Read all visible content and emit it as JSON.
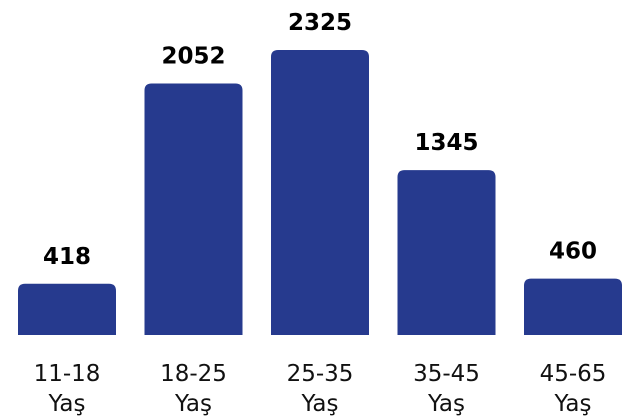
{
  "chart_data": {
    "type": "bar",
    "categories": [
      [
        "11-18",
        "Yaş"
      ],
      [
        "18-25",
        "Yaş"
      ],
      [
        "25-35",
        "Yaş"
      ],
      [
        "35-45",
        "Yaş"
      ],
      [
        "45-65",
        "Yaş"
      ]
    ],
    "values": [
      418,
      2052,
      2325,
      1345,
      460
    ],
    "data_labels": [
      "418",
      "2052",
      "2325",
      "1345",
      "460"
    ],
    "title": "",
    "xlabel": "",
    "ylabel": "",
    "ylim": [
      0,
      2325
    ],
    "grid": false,
    "legend": "none",
    "bar_color": "#263a8e",
    "label_color": "#000000"
  }
}
